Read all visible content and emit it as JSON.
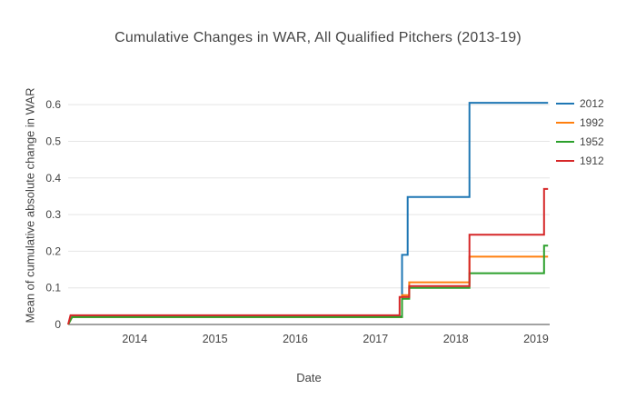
{
  "chart_data": {
    "type": "line",
    "title": "Cumulative Changes in WAR, All Qualified Pitchers (2013-19)",
    "xlabel": "Date",
    "ylabel": "Mean of cumulative absolute change in WAR",
    "xlim": [
      2013.17,
      2019.17
    ],
    "ylim": [
      0,
      0.65
    ],
    "xtick_values": [
      2014,
      2015,
      2016,
      2017,
      2018,
      2019
    ],
    "xtick_labels": [
      "2014",
      "2015",
      "2016",
      "2017",
      "2018",
      "2019"
    ],
    "ytick_values": [
      0,
      0.1,
      0.2,
      0.3,
      0.4,
      0.5,
      0.6
    ],
    "ytick_labels": [
      "0",
      "0.1",
      "0.2",
      "0.3",
      "0.4",
      "0.5",
      "0.6"
    ],
    "grid": true,
    "grid_color": "#e5e5e5",
    "axis_line_color": "#444444",
    "legend_position": "top-right",
    "series": [
      {
        "name": "2012",
        "color": "#1f77b4",
        "points": [
          [
            2013.17,
            0
          ],
          [
            2013.22,
            0.022
          ],
          [
            2017.33,
            0.022
          ],
          [
            2017.33,
            0.19
          ],
          [
            2017.4,
            0.19
          ],
          [
            2017.4,
            0.348
          ],
          [
            2018.17,
            0.348
          ],
          [
            2018.17,
            0.605
          ],
          [
            2019.15,
            0.605
          ]
        ]
      },
      {
        "name": "1992",
        "color": "#ff7f0e",
        "points": [
          [
            2013.17,
            0
          ],
          [
            2013.22,
            0.02
          ],
          [
            2017.33,
            0.02
          ],
          [
            2017.33,
            0.08
          ],
          [
            2017.42,
            0.08
          ],
          [
            2017.42,
            0.115
          ],
          [
            2018.17,
            0.115
          ],
          [
            2018.17,
            0.185
          ],
          [
            2019.15,
            0.185
          ]
        ]
      },
      {
        "name": "1952",
        "color": "#2ca02c",
        "points": [
          [
            2013.17,
            0
          ],
          [
            2013.22,
            0.02
          ],
          [
            2017.33,
            0.02
          ],
          [
            2017.33,
            0.07
          ],
          [
            2017.42,
            0.07
          ],
          [
            2017.42,
            0.1
          ],
          [
            2018.17,
            0.1
          ],
          [
            2018.17,
            0.14
          ],
          [
            2019.1,
            0.14
          ],
          [
            2019.1,
            0.215
          ],
          [
            2019.15,
            0.215
          ]
        ]
      },
      {
        "name": "1912",
        "color": "#d62728",
        "points": [
          [
            2013.17,
            0
          ],
          [
            2013.2,
            0.025
          ],
          [
            2017.3,
            0.025
          ],
          [
            2017.3,
            0.075
          ],
          [
            2017.42,
            0.075
          ],
          [
            2017.42,
            0.105
          ],
          [
            2018.17,
            0.105
          ],
          [
            2018.17,
            0.245
          ],
          [
            2019.1,
            0.245
          ],
          [
            2019.1,
            0.37
          ],
          [
            2019.15,
            0.37
          ]
        ]
      }
    ]
  }
}
